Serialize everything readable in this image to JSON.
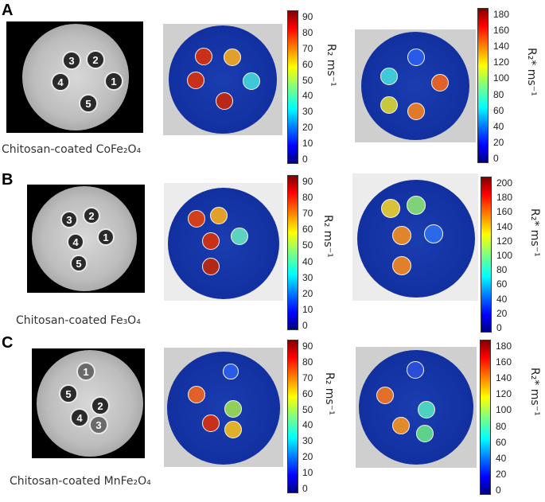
{
  "panels": [
    {
      "letter": "A",
      "caption": "Chitosan-coated CoFe₂O₄",
      "mri_labels": [
        "3",
        "2",
        "4",
        "1",
        "5"
      ],
      "r2_label": "R₂ ms⁻¹",
      "r2_ticks": [
        "90",
        "80",
        "70",
        "60",
        "50",
        "40",
        "30",
        "20",
        "10",
        "0"
      ],
      "r2star_label": "R₂* ms⁻¹",
      "r2star_ticks": [
        "180",
        "160",
        "140",
        "120",
        "100",
        "80",
        "60",
        "40",
        "20",
        "0"
      ]
    },
    {
      "letter": "B",
      "caption": "Chitosan-coated Fe₃O₄",
      "mri_labels": [
        "3",
        "2",
        "4",
        "1",
        "5"
      ],
      "r2_label": "R₂ ms⁻¹",
      "r2_ticks": [
        "90",
        "80",
        "70",
        "60",
        "50",
        "40",
        "30",
        "20",
        "10",
        "0"
      ],
      "r2star_label": "R₂* ms⁻¹",
      "r2star_ticks": [
        "200",
        "180",
        "160",
        "140",
        "120",
        "100",
        "80",
        "60",
        "40",
        "20",
        "0"
      ]
    },
    {
      "letter": "C",
      "caption": "Chitosan-coated MnFe₂O₄",
      "mri_labels": [
        "1",
        "5",
        "2",
        "4",
        "3"
      ],
      "r2_label": "R₂ ms⁻¹",
      "r2_ticks": [
        "90",
        "80",
        "70",
        "60",
        "50",
        "40",
        "30",
        "20",
        "10",
        "0"
      ],
      "r2star_label": "R₂* ms⁻¹",
      "r2star_ticks": [
        "180",
        "160",
        "140",
        "120",
        "100",
        "80",
        "60",
        "40",
        "20",
        "0"
      ]
    }
  ],
  "colors": {
    "map_background": "#1230a0",
    "spot_red": "#d23a1a",
    "spot_orange": "#e58a1a",
    "spot_yellow": "#d6c23a",
    "spot_cyan": "#3ec8d8",
    "spot_green": "#5ed28a",
    "spot_blue": "#2a5ae8"
  }
}
